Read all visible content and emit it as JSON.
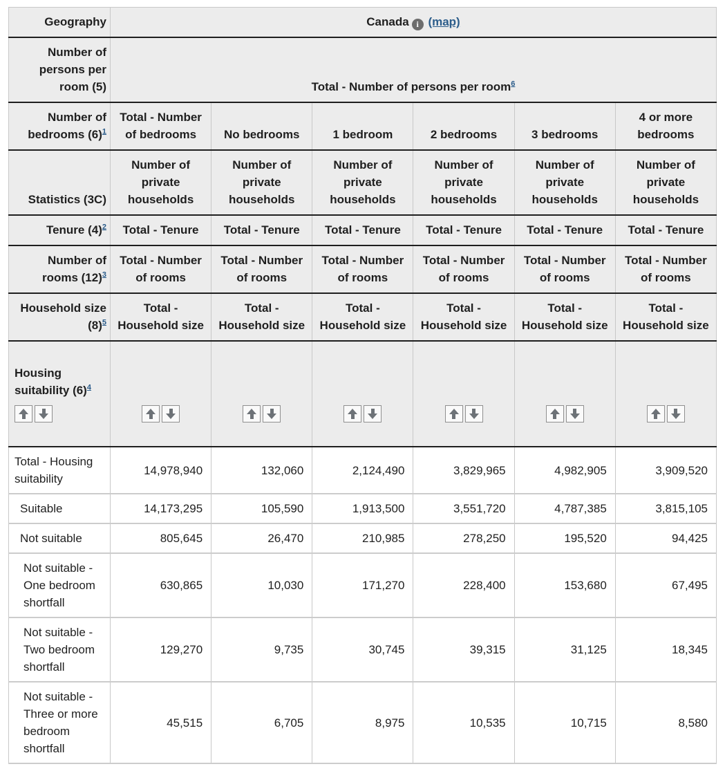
{
  "table": {
    "geography": {
      "label": "Geography",
      "value": "Canada",
      "info_icon": "i",
      "map_link": "(map)"
    },
    "persons_per_room": {
      "label": "Number of\npersons per\nroom (5)",
      "value": "Total - Number of persons per room",
      "footnote": "6"
    },
    "header_rows": [
      {
        "label": "Number of\nbedrooms (6)",
        "footnote": "1",
        "cells": [
          "Total - Number\nof bedrooms",
          "No bedrooms",
          "1 bedroom",
          "2 bedrooms",
          "3 bedrooms",
          "4 or more\nbedrooms"
        ]
      },
      {
        "label": "Statistics (3C)",
        "footnote": "",
        "cells": [
          "Number of\nprivate\nhouseholds",
          "Number of\nprivate\nhouseholds",
          "Number of\nprivate\nhouseholds",
          "Number of\nprivate\nhouseholds",
          "Number of\nprivate\nhouseholds",
          "Number of\nprivate\nhouseholds"
        ]
      },
      {
        "label": "Tenure (4)",
        "footnote": "2",
        "cells": [
          "Total - Tenure",
          "Total - Tenure",
          "Total - Tenure",
          "Total - Tenure",
          "Total - Tenure",
          "Total - Tenure"
        ]
      },
      {
        "label": "Number of\nrooms (12)",
        "footnote": "3",
        "cells": [
          "Total - Number\nof rooms",
          "Total - Number\nof rooms",
          "Total - Number\nof rooms",
          "Total - Number\nof rooms",
          "Total - Number\nof rooms",
          "Total - Number\nof rooms"
        ]
      },
      {
        "label": "Household size\n(8)",
        "footnote": "5",
        "cells": [
          "Total -\nHousehold size",
          "Total -\nHousehold size",
          "Total -\nHousehold size",
          "Total -\nHousehold size",
          "Total -\nHousehold size",
          "Total -\nHousehold size"
        ]
      }
    ],
    "sort_row": {
      "label": "Housing\nsuitability (6)",
      "footnote": "4"
    },
    "data_rows": [
      {
        "label": "Total - Housing\nsuitability",
        "values": [
          "14,978,940",
          "132,060",
          "2,124,490",
          "3,829,965",
          "4,982,905",
          "3,909,520"
        ]
      },
      {
        "label": "Suitable",
        "values": [
          "14,173,295",
          "105,590",
          "1,913,500",
          "3,551,720",
          "4,787,385",
          "3,815,105"
        ]
      },
      {
        "label": "Not suitable",
        "values": [
          "805,645",
          "26,470",
          "210,985",
          "278,250",
          "195,520",
          "94,425"
        ]
      },
      {
        "label": "Not suitable -\nOne bedroom\nshortfall",
        "values": [
          "630,865",
          "10,030",
          "171,270",
          "228,400",
          "153,680",
          "67,495"
        ]
      },
      {
        "label": "Not suitable -\nTwo bedroom\nshortfall",
        "values": [
          "129,270",
          "9,735",
          "30,745",
          "39,315",
          "31,125",
          "18,345"
        ]
      },
      {
        "label": "Not suitable -\nThree or more\nbedroom\nshortfall",
        "values": [
          "45,515",
          "6,705",
          "8,975",
          "10,535",
          "10,715",
          "8,580"
        ]
      }
    ],
    "colors": {
      "link": "#2b5c8a",
      "header_bg": "#ececec",
      "dark_border": "#1e1e1e",
      "light_border": "#c8c8c8",
      "arrow": "#6d7277"
    }
  }
}
